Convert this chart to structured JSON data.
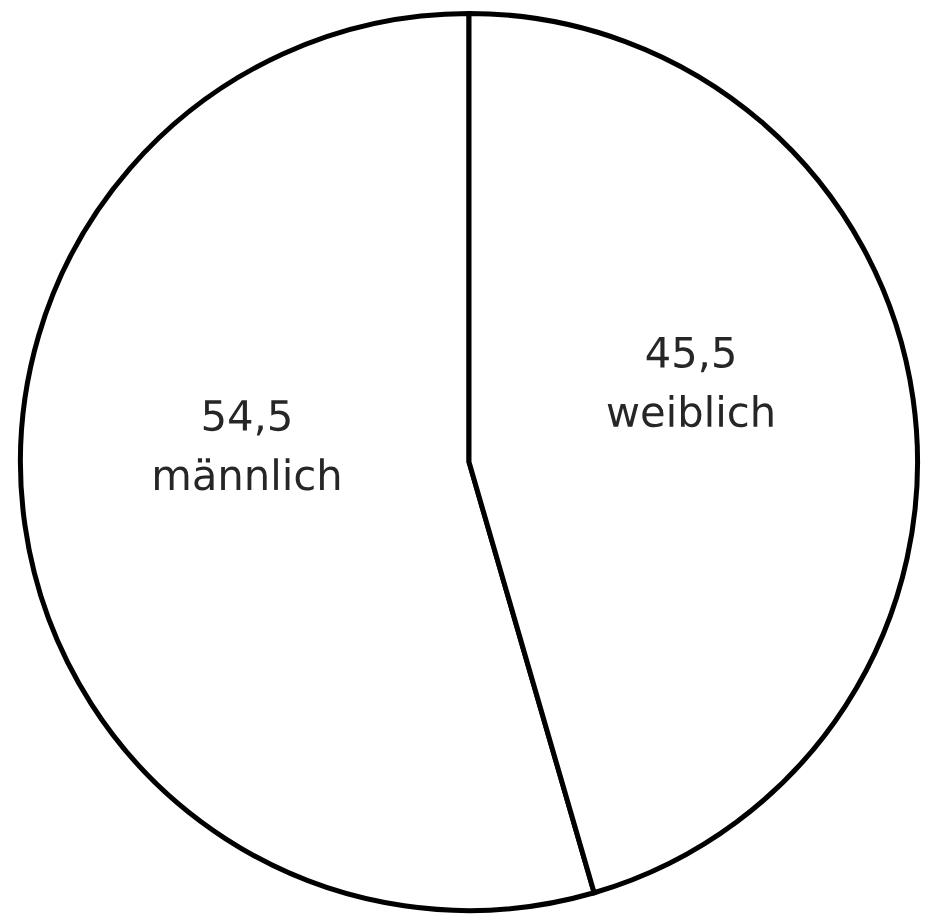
{
  "chart_data": {
    "type": "pie",
    "categories": [
      "männlich",
      "weiblich"
    ],
    "values": [
      54.5,
      45.5
    ],
    "value_labels": [
      "54,5",
      "45,5"
    ],
    "colors": [
      "#ffffff",
      "#ffffff"
    ]
  }
}
